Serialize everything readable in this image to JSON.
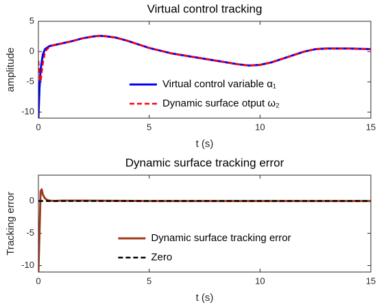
{
  "chart_data": [
    {
      "type": "line",
      "title": "Virtual control tracking",
      "xlabel": "t (s)",
      "ylabel": "amplitude",
      "x": [
        0,
        0.05,
        0.1,
        0.2,
        0.3,
        0.5,
        0.75,
        1,
        1.5,
        2,
        2.5,
        2.75,
        3,
        3.5,
        4,
        4.5,
        5,
        6,
        7,
        8,
        9,
        9.5,
        10,
        10.5,
        11,
        11.5,
        12,
        12.5,
        13,
        14,
        15
      ],
      "series": [
        {
          "name": "Virtual control variable α₁",
          "color": "#0000ff",
          "linestyle": "solid",
          "values": [
            -11,
            -6,
            -3,
            -0.5,
            0.4,
            0.9,
            1.1,
            1.3,
            1.7,
            2.2,
            2.5,
            2.6,
            2.55,
            2.3,
            1.8,
            1.2,
            0.6,
            -0.3,
            -0.9,
            -1.5,
            -2.1,
            -2.3,
            -2.2,
            -1.8,
            -1.2,
            -0.6,
            0,
            0.4,
            0.5,
            0.5,
            0.4
          ]
        },
        {
          "name": "Dynamic surface otput ω₂",
          "color": "#ff0000",
          "linestyle": "dashed",
          "values": [
            -1.5,
            -4,
            -5,
            -2,
            0,
            0.8,
            1.1,
            1.3,
            1.7,
            2.2,
            2.5,
            2.6,
            2.55,
            2.3,
            1.8,
            1.2,
            0.6,
            -0.3,
            -0.9,
            -1.5,
            -2.1,
            -2.3,
            -2.2,
            -1.8,
            -1.2,
            -0.6,
            0,
            0.4,
            0.5,
            0.5,
            0.4
          ]
        }
      ],
      "xlim": [
        0,
        15
      ],
      "xticks": [
        0,
        5,
        10,
        15
      ],
      "ylim": [
        -11,
        5
      ],
      "yticks": [
        -10,
        -5,
        0,
        5
      ],
      "grid": false,
      "legend": "lower center"
    },
    {
      "type": "line",
      "title": "Dynamic surface tracking error",
      "xlabel": "t (s)",
      "ylabel": "Tracking error",
      "x": [
        0,
        0.05,
        0.1,
        0.15,
        0.2,
        0.3,
        0.4,
        0.5,
        0.75,
        1,
        2,
        5,
        10,
        15
      ],
      "series": [
        {
          "name": "Dynamic surface tracking error",
          "color": "#a2391c",
          "linestyle": "solid",
          "values": [
            -11,
            -5,
            1.5,
            1.8,
            1,
            0.4,
            0.15,
            0.05,
            0,
            0.05,
            0.05,
            0,
            0,
            0
          ]
        },
        {
          "name": "Zero",
          "color": "#000000",
          "linestyle": "dashed",
          "values": [
            0,
            0,
            0,
            0,
            0,
            0,
            0,
            0,
            0,
            0,
            0,
            0,
            0,
            0
          ]
        }
      ],
      "xlim": [
        0,
        15
      ],
      "xticks": [
        0,
        5,
        10,
        15
      ],
      "ylim": [
        -11,
        4
      ],
      "yticks": [
        -10,
        -5,
        0
      ],
      "grid": false,
      "legend": "lower center"
    }
  ]
}
